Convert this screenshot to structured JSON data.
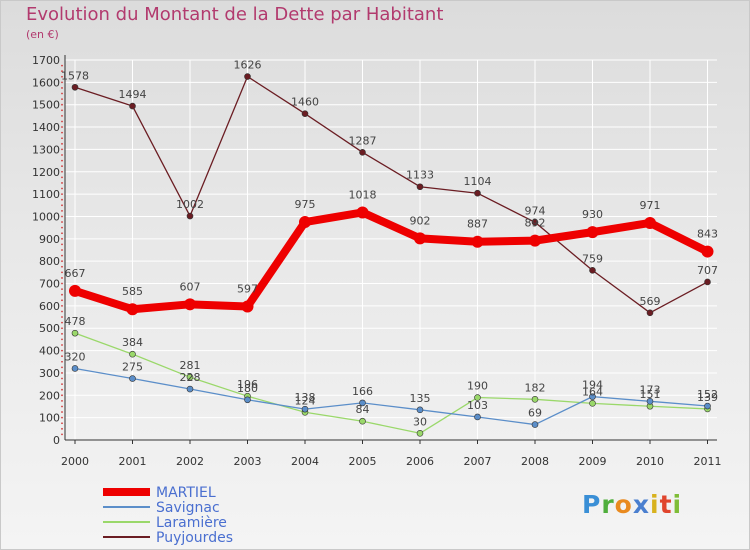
{
  "title": "Evolution du Montant de la Dette par Habitant",
  "subtitle": "(en €)",
  "logo": "Proxiti",
  "colors": {
    "title": "#b23a6e",
    "MARTIEL": "#ee0000",
    "Savignac": "#5b8ec9",
    "Laramière": "#9ad86a",
    "Puyjourdes": "#6b1d23"
  },
  "chart_data": {
    "type": "line",
    "title": "Evolution du Montant de la Dette par Habitant",
    "subtitle": "(en €)",
    "categories": [
      "2000",
      "2001",
      "2002",
      "2003",
      "2004",
      "2005",
      "2006",
      "2007",
      "2008",
      "2009",
      "2010",
      "2011"
    ],
    "ylim": [
      0,
      1700
    ],
    "yticks": [
      0,
      100,
      200,
      300,
      400,
      500,
      600,
      700,
      800,
      900,
      1000,
      1100,
      1200,
      1300,
      1400,
      1500,
      1600,
      1700
    ],
    "grid": true,
    "legend_position": "bottom-left",
    "series": [
      {
        "name": "MARTIEL",
        "color": "#ee0000",
        "values": [
          667,
          585,
          607,
          597,
          975,
          1018,
          902,
          887,
          892,
          930,
          971,
          843
        ]
      },
      {
        "name": "Savignac",
        "color": "#5b8ec9",
        "values": [
          320,
          275,
          228,
          180,
          138,
          166,
          135,
          103,
          69,
          194,
          173,
          152
        ]
      },
      {
        "name": "Laramière",
        "color": "#9ad86a",
        "values": [
          478,
          384,
          281,
          196,
          124,
          84,
          30,
          190,
          182,
          164,
          151,
          139
        ]
      },
      {
        "name": "Puyjourdes",
        "color": "#6b1d23",
        "values": [
          1578,
          1494,
          1002,
          1626,
          1460,
          1287,
          1133,
          1104,
          974,
          759,
          569,
          707
        ]
      }
    ]
  }
}
